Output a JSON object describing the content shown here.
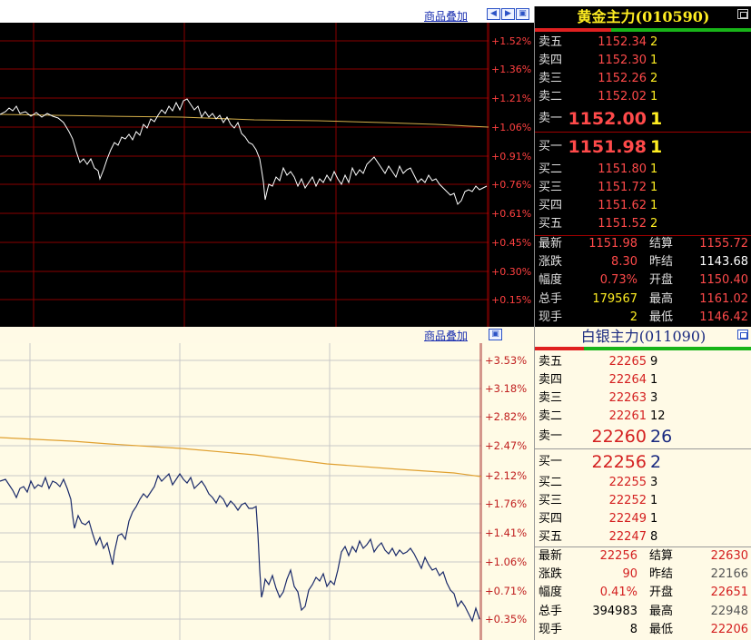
{
  "top_chart": {
    "overlay_label": "商品叠加",
    "y_ticks": [
      "+1.52%",
      "+1.36%",
      "+1.21%",
      "+1.06%",
      "+0.91%",
      "+0.76%",
      "+0.61%",
      "+0.45%",
      "+0.30%",
      "+0.15%"
    ],
    "colors": {
      "background": "#000000",
      "grid": "#8a0000",
      "price_line": "#ffffff",
      "avg_line": "#d6b04a",
      "tick": "#ff4040"
    }
  },
  "gold": {
    "title": "黄金主力(010590)",
    "asks": [
      {
        "label": "卖五",
        "price": "1152.34",
        "vol": "2"
      },
      {
        "label": "卖四",
        "price": "1152.30",
        "vol": "1"
      },
      {
        "label": "卖三",
        "price": "1152.26",
        "vol": "2"
      },
      {
        "label": "卖二",
        "price": "1152.02",
        "vol": "1"
      },
      {
        "label": "卖一",
        "price": "1152.00",
        "vol": "1"
      }
    ],
    "bids": [
      {
        "label": "买一",
        "price": "1151.98",
        "vol": "1"
      },
      {
        "label": "买二",
        "price": "1151.80",
        "vol": "1"
      },
      {
        "label": "买三",
        "price": "1151.72",
        "vol": "1"
      },
      {
        "label": "买四",
        "price": "1151.62",
        "vol": "1"
      },
      {
        "label": "买五",
        "price": "1151.52",
        "vol": "2"
      }
    ],
    "stats": [
      {
        "l1": "最新",
        "v1": "1151.98",
        "l2": "结算",
        "v2": "1155.72"
      },
      {
        "l1": "涨跌",
        "v1": "8.30",
        "l2": "昨结",
        "v2": "1143.68"
      },
      {
        "l1": "幅度",
        "v1": "0.73%",
        "l2": "开盘",
        "v2": "1150.40"
      },
      {
        "l1": "总手",
        "v1": "179567",
        "l2": "最高",
        "v2": "1161.02"
      },
      {
        "l1": "现手",
        "v1": "2",
        "l2": "最低",
        "v2": "1146.42"
      }
    ]
  },
  "bottom_chart": {
    "overlay_label": "商品叠加",
    "y_ticks": [
      "+3.53%",
      "+3.18%",
      "+2.82%",
      "+2.47%",
      "+2.12%",
      "+1.76%",
      "+1.41%",
      "+1.06%",
      "+0.71%",
      "+0.35%"
    ],
    "colors": {
      "background": "#fffbe6",
      "grid": "#c8c8c8",
      "price_line": "#1a2a6a",
      "avg_line": "#e0a030",
      "tick": "#c02020"
    }
  },
  "silver": {
    "title": "白银主力(011090)",
    "asks": [
      {
        "label": "卖五",
        "price": "22265",
        "vol": "9"
      },
      {
        "label": "卖四",
        "price": "22264",
        "vol": "1"
      },
      {
        "label": "卖三",
        "price": "22263",
        "vol": "3"
      },
      {
        "label": "卖二",
        "price": "22261",
        "vol": "12"
      },
      {
        "label": "卖一",
        "price": "22260",
        "vol": "26"
      }
    ],
    "bids": [
      {
        "label": "买一",
        "price": "22256",
        "vol": "2"
      },
      {
        "label": "买二",
        "price": "22255",
        "vol": "3"
      },
      {
        "label": "买三",
        "price": "22252",
        "vol": "1"
      },
      {
        "label": "买四",
        "price": "22249",
        "vol": "1"
      },
      {
        "label": "买五",
        "price": "22247",
        "vol": "8"
      }
    ],
    "stats": [
      {
        "l1": "最新",
        "v1": "22256",
        "l2": "结算",
        "v2": "22630"
      },
      {
        "l1": "涨跌",
        "v1": "90",
        "l2": "昨结",
        "v2": "22166"
      },
      {
        "l1": "幅度",
        "v1": "0.41%",
        "l2": "开盘",
        "v2": "22651"
      },
      {
        "l1": "总手",
        "v1": "394983",
        "l2": "最高",
        "v2": "22948"
      },
      {
        "l1": "现手",
        "v1": "8",
        "l2": "最低",
        "v2": "22206"
      }
    ]
  }
}
